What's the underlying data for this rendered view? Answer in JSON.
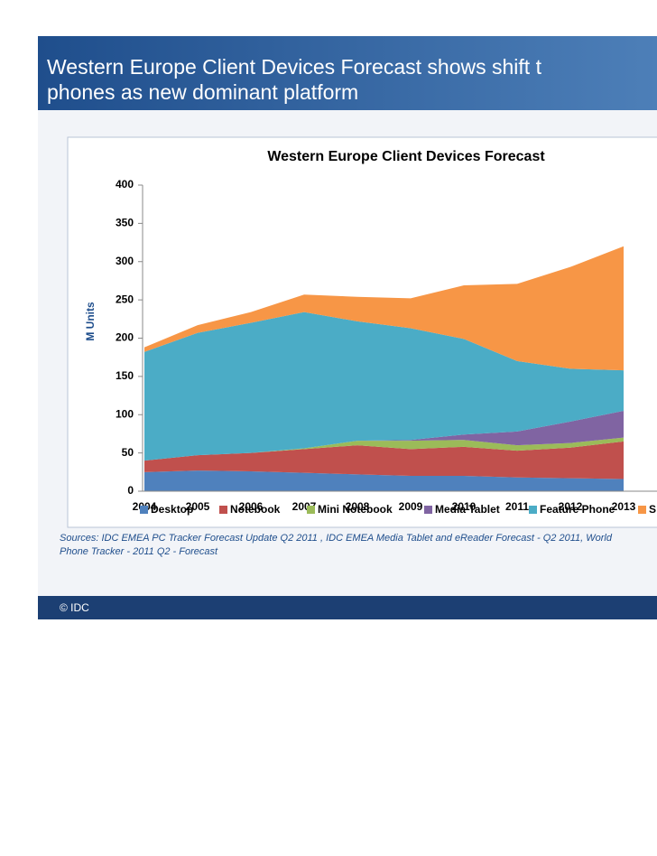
{
  "slide": {
    "title": [
      "Western Europe Client Devices Forecast shows shift t",
      "phones as new dominant platform"
    ],
    "sources": [
      "Sources: IDC EMEA PC Tracker Forecast Update Q2 2011 , IDC EMEA Media Tablet and eReader Forecast - Q2 2011, World",
      "Phone Tracker - 2011 Q2  - Forecast"
    ],
    "footer": "© IDC"
  },
  "chart_data": {
    "type": "stacked_area",
    "title": "Western Europe Client Devices Forecast",
    "y_label": "M Units",
    "categories": [
      "2004",
      "2005",
      "2006",
      "2007",
      "2008",
      "2009",
      "2010",
      "2011",
      "2012",
      "2013"
    ],
    "series": [
      {
        "name": "Desktop",
        "color": "#4f81bd",
        "values": [
          25,
          27,
          26,
          24,
          22,
          20,
          20,
          18,
          17,
          16
        ]
      },
      {
        "name": "Notebook",
        "color": "#c0504d",
        "values": [
          15,
          20,
          24,
          31,
          38,
          35,
          38,
          35,
          40,
          49
        ]
      },
      {
        "name": "Mini Notebook",
        "color": "#9bbb59",
        "values": [
          0,
          0,
          0,
          1,
          6,
          11,
          9,
          7,
          6,
          5
        ]
      },
      {
        "name": "Media Tablet",
        "color": "#8064a2",
        "values": [
          0,
          0,
          0,
          0,
          0,
          1,
          7,
          18,
          28,
          35
        ]
      },
      {
        "name": "Feature Phone",
        "color": "#4bacc6",
        "values": [
          142,
          160,
          170,
          178,
          156,
          146,
          125,
          92,
          69,
          53
        ]
      },
      {
        "name": "S",
        "color": "#f79646",
        "values": [
          6,
          10,
          14,
          23,
          32,
          39,
          70,
          101,
          133,
          162
        ]
      }
    ],
    "ylim": [
      0,
      400
    ],
    "yticks": [
      0,
      50,
      100,
      150,
      200,
      250,
      300,
      350,
      400
    ],
    "grid": false
  }
}
